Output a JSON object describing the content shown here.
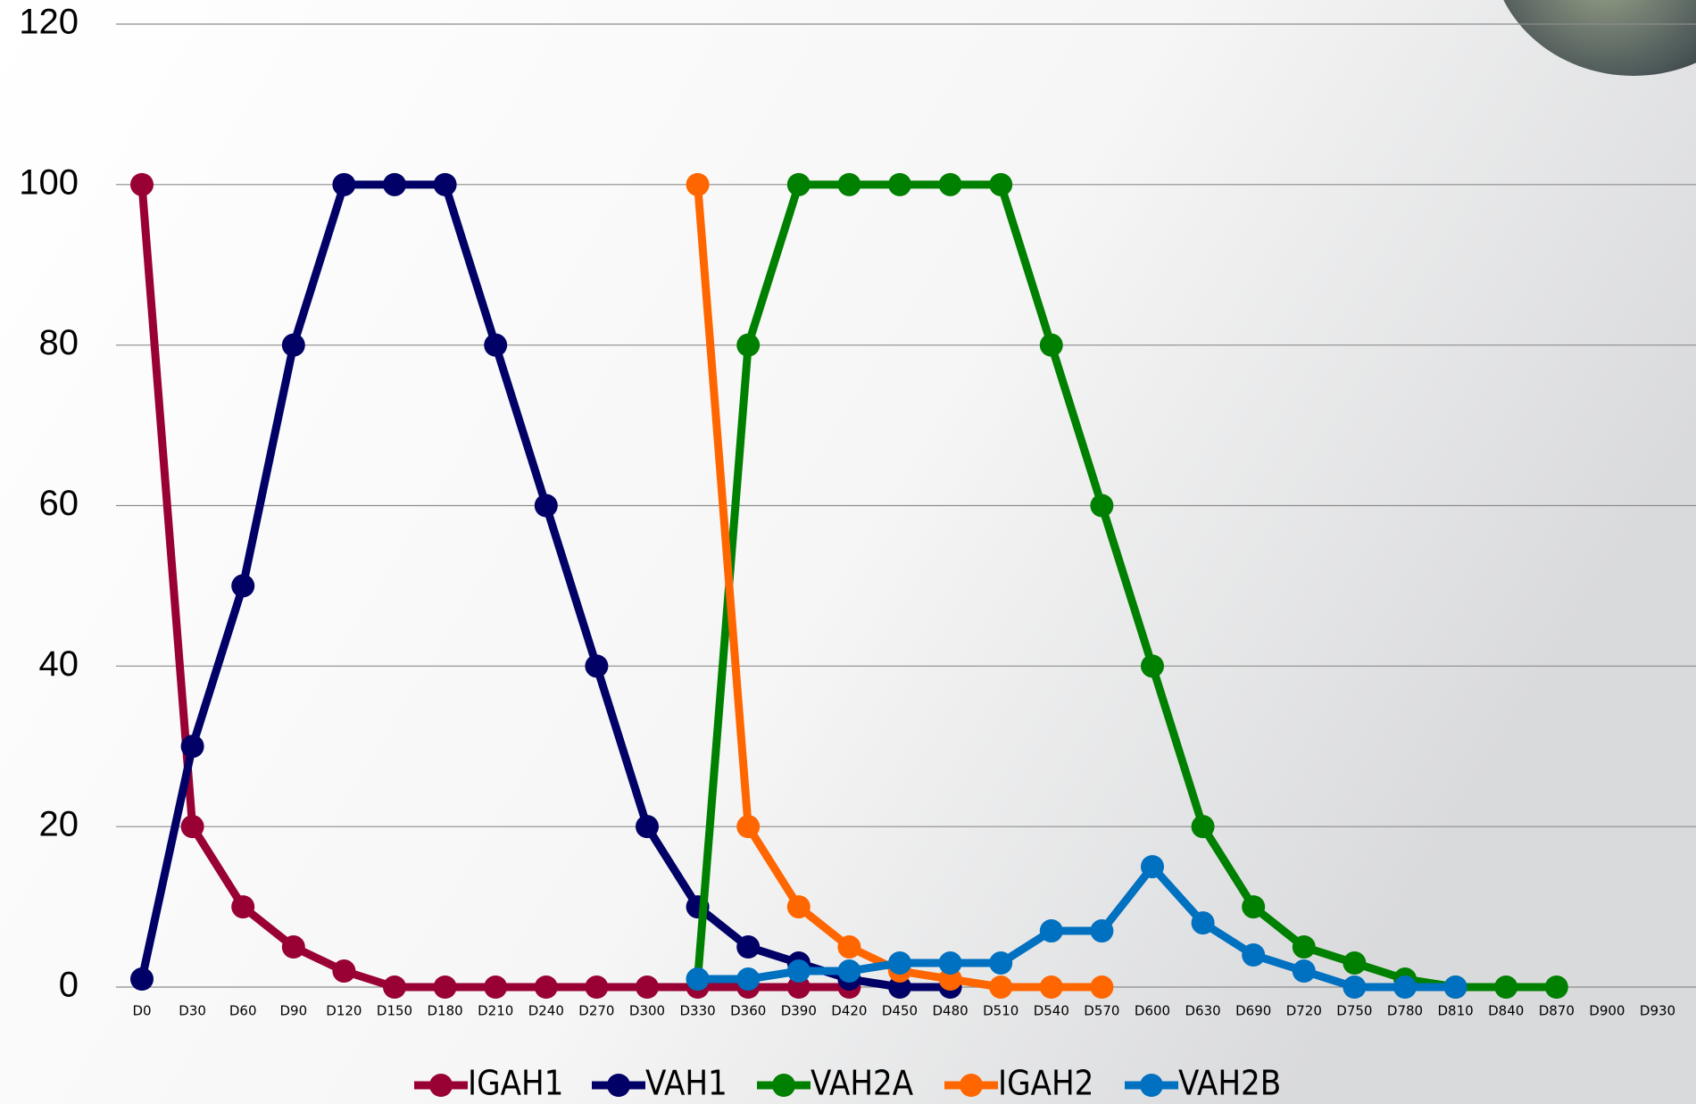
{
  "chart_data": {
    "type": "line",
    "categories": [
      "D0",
      "D30",
      "D60",
      "D90",
      "D120",
      "D150",
      "D180",
      "D210",
      "D240",
      "D270",
      "D300",
      "D330",
      "D360",
      "D390",
      "D420",
      "D450",
      "D480",
      "D510",
      "D540",
      "D570",
      "D600",
      "D630",
      "D690",
      "D720",
      "D750",
      "D780",
      "D810",
      "D840",
      "D870",
      "D900",
      "D930"
    ],
    "series": [
      {
        "name": "IGAH1",
        "color": "#990033",
        "values": [
          100,
          20,
          10,
          5,
          2,
          0,
          0,
          0,
          0,
          0,
          0,
          0,
          0,
          0,
          0,
          null,
          null,
          null,
          null,
          null,
          null,
          null,
          null,
          null,
          null,
          null,
          null,
          null,
          null,
          null,
          null
        ]
      },
      {
        "name": "VAH1",
        "color": "#000066",
        "values": [
          1,
          30,
          50,
          80,
          100,
          100,
          100,
          80,
          60,
          40,
          20,
          10,
          5,
          3,
          1,
          0,
          0,
          null,
          null,
          null,
          null,
          null,
          null,
          null,
          null,
          null,
          null,
          null,
          null,
          null,
          null
        ]
      },
      {
        "name": "VAH2A",
        "color": "#008000",
        "values": [
          null,
          null,
          null,
          null,
          null,
          null,
          null,
          null,
          null,
          null,
          null,
          1,
          80,
          100,
          100,
          100,
          100,
          100,
          80,
          60,
          40,
          20,
          10,
          5,
          3,
          1,
          0,
          0,
          0,
          null,
          null
        ]
      },
      {
        "name": "IGAH2",
        "color": "#ff6600",
        "values": [
          null,
          null,
          null,
          null,
          null,
          null,
          null,
          null,
          null,
          null,
          null,
          100,
          20,
          10,
          5,
          2,
          1,
          0,
          0,
          0,
          null,
          null,
          null,
          null,
          null,
          null,
          null,
          null,
          null,
          null,
          null
        ]
      },
      {
        "name": "VAH2B",
        "color": "#0070c0",
        "values": [
          null,
          null,
          null,
          null,
          null,
          null,
          null,
          null,
          null,
          null,
          null,
          1,
          1,
          2,
          2,
          3,
          3,
          3,
          7,
          7,
          15,
          8,
          4,
          2,
          0,
          0,
          0,
          null,
          null,
          null,
          null
        ]
      }
    ],
    "ylim": [
      0,
      120
    ],
    "yticks": [
      0,
      20,
      40,
      60,
      80,
      100,
      120
    ],
    "grid": true,
    "legend": "bottom"
  }
}
